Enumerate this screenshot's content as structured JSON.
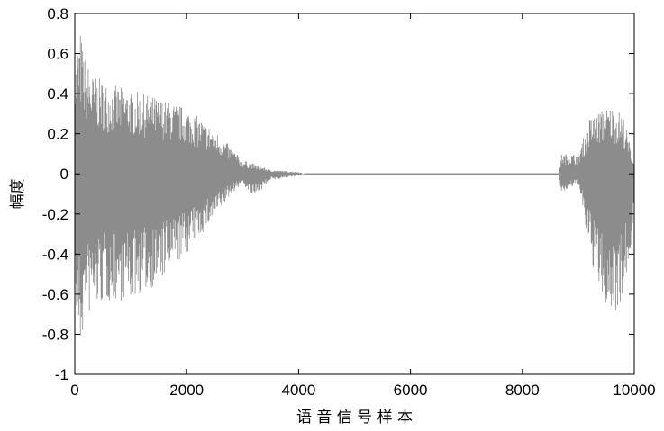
{
  "chart_data": {
    "type": "line",
    "title": "",
    "xlabel": "语 音 信 号 样 本",
    "ylabel": "幅度",
    "xlim": [
      0,
      10000
    ],
    "ylim": [
      -1,
      0.8
    ],
    "xticks": [
      0,
      2000,
      4000,
      6000,
      8000,
      10000
    ],
    "xtick_labels": [
      "0",
      "2000",
      "4000",
      "6000",
      "8000",
      "10000"
    ],
    "yticks": [
      0.8,
      0.6,
      0.4,
      0.2,
      0,
      -0.2,
      -0.4,
      -0.6,
      -0.8,
      -1
    ],
    "ytick_labels": [
      "0.8",
      "0.6",
      "0.4",
      "0.2",
      "0",
      "-0.2",
      "-0.4",
      "-0.6",
      "-0.8",
      "-1"
    ],
    "grid": false,
    "series": [
      {
        "color": "#8c8c8c",
        "envelope": {
          "x": [
            0,
            100,
            150,
            300,
            600,
            1000,
            1500,
            2000,
            2500,
            2800,
            3000,
            3200,
            3500,
            4000,
            4100,
            8650,
            8700,
            9000,
            9200,
            9400,
            9600,
            9800,
            10000
          ],
          "upper": [
            0.55,
            0.72,
            0.62,
            0.5,
            0.45,
            0.42,
            0.38,
            0.33,
            0.22,
            0.13,
            0.07,
            0.05,
            0.02,
            0.01,
            0,
            0,
            0.1,
            0.1,
            0.28,
            0.32,
            0.34,
            0.3,
            0.05
          ],
          "lower": [
            -0.7,
            -0.9,
            -0.8,
            -0.68,
            -0.64,
            -0.63,
            -0.55,
            -0.4,
            -0.22,
            -0.1,
            -0.05,
            -0.12,
            -0.03,
            -0.01,
            0,
            0,
            -0.1,
            -0.05,
            -0.4,
            -0.62,
            -0.72,
            -0.62,
            -0.28
          ]
        }
      }
    ]
  }
}
